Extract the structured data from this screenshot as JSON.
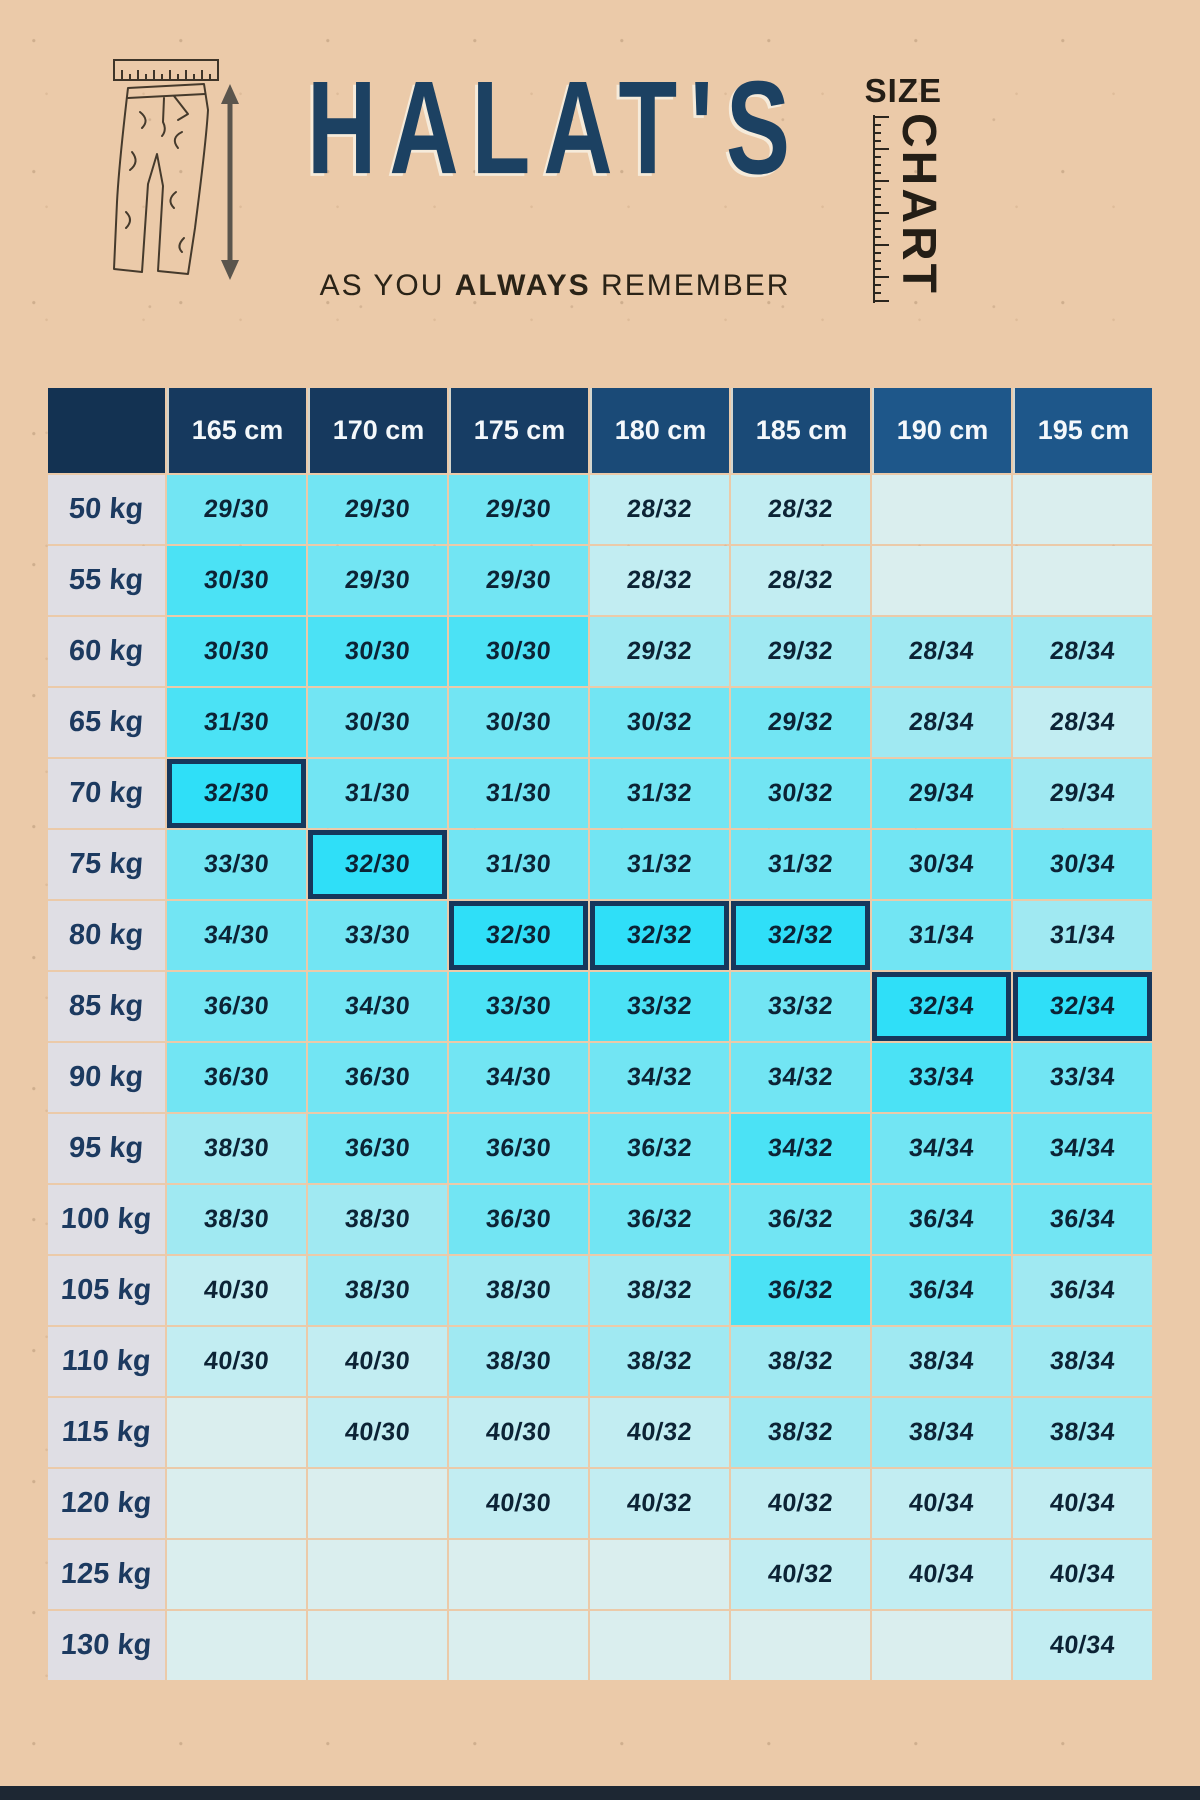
{
  "brand": {
    "title": "HALAT'S",
    "tagline_prefix": "AS YOU ",
    "tagline_bold": "ALWAYS",
    "tagline_suffix": " REMEMBER",
    "size_label": "SIZE",
    "chart_label": "CHART"
  },
  "chart_data": {
    "type": "table",
    "title": "HALAT'S size chart — pants size (waist/length) by height and weight",
    "columns": [
      "165 cm",
      "170 cm",
      "175 cm",
      "180 cm",
      "185 cm",
      "190 cm",
      "195 cm"
    ],
    "row_header_unit": "kg",
    "rows": [
      {
        "weight": "50 kg",
        "values": [
          "29/30",
          "29/30",
          "29/30",
          "28/32",
          "28/32",
          "",
          ""
        ],
        "shades": [
          "3",
          "3",
          "3",
          "1",
          "1",
          "0",
          "0"
        ]
      },
      {
        "weight": "55 kg",
        "values": [
          "30/30",
          "29/30",
          "29/30",
          "28/32",
          "28/32",
          "",
          ""
        ],
        "shades": [
          "4",
          "3",
          "3",
          "1",
          "1",
          "0",
          "0"
        ]
      },
      {
        "weight": "60 kg",
        "values": [
          "30/30",
          "30/30",
          "30/30",
          "29/32",
          "29/32",
          "28/34",
          "28/34"
        ],
        "shades": [
          "4",
          "4",
          "4",
          "2",
          "2",
          "2",
          "2"
        ]
      },
      {
        "weight": "65 kg",
        "values": [
          "31/30",
          "30/30",
          "30/30",
          "30/32",
          "29/32",
          "28/34",
          "28/34"
        ],
        "shades": [
          "4",
          "3",
          "3",
          "3",
          "3",
          "2",
          "1"
        ]
      },
      {
        "weight": "70 kg",
        "values": [
          "32/30",
          "31/30",
          "31/30",
          "31/32",
          "30/32",
          "29/34",
          "29/34"
        ],
        "shades": [
          "h",
          "3",
          "3",
          "3",
          "3",
          "3",
          "2"
        ]
      },
      {
        "weight": "75 kg",
        "values": [
          "33/30",
          "32/30",
          "31/30",
          "31/32",
          "31/32",
          "30/34",
          "30/34"
        ],
        "shades": [
          "3",
          "h",
          "3",
          "3",
          "3",
          "3",
          "3"
        ]
      },
      {
        "weight": "80 kg",
        "values": [
          "34/30",
          "33/30",
          "32/30",
          "32/32",
          "32/32",
          "31/34",
          "31/34"
        ],
        "shades": [
          "3",
          "3",
          "h",
          "h",
          "h",
          "3",
          "2"
        ]
      },
      {
        "weight": "85 kg",
        "values": [
          "36/30",
          "34/30",
          "33/30",
          "33/32",
          "33/32",
          "32/34",
          "32/34"
        ],
        "shades": [
          "3",
          "3",
          "4",
          "4",
          "3",
          "h",
          "h"
        ]
      },
      {
        "weight": "90 kg",
        "values": [
          "36/30",
          "36/30",
          "34/30",
          "34/32",
          "34/32",
          "33/34",
          "33/34"
        ],
        "shades": [
          "3",
          "3",
          "3",
          "3",
          "3",
          "4",
          "3"
        ]
      },
      {
        "weight": "95 kg",
        "values": [
          "38/30",
          "36/30",
          "36/30",
          "36/32",
          "34/32",
          "34/34",
          "34/34"
        ],
        "shades": [
          "2",
          "3",
          "3",
          "3",
          "4",
          "3",
          "3"
        ]
      },
      {
        "weight": "100 kg",
        "values": [
          "38/30",
          "38/30",
          "36/30",
          "36/32",
          "36/32",
          "36/34",
          "36/34"
        ],
        "shades": [
          "2",
          "2",
          "3",
          "3",
          "3",
          "3",
          "3"
        ]
      },
      {
        "weight": "105 kg",
        "values": [
          "40/30",
          "38/30",
          "38/30",
          "38/32",
          "36/32",
          "36/34",
          "36/34"
        ],
        "shades": [
          "1",
          "2",
          "2",
          "2",
          "4",
          "3",
          "2"
        ]
      },
      {
        "weight": "110 kg",
        "values": [
          "40/30",
          "40/30",
          "38/30",
          "38/32",
          "38/32",
          "38/34",
          "38/34"
        ],
        "shades": [
          "1",
          "1",
          "2",
          "2",
          "2",
          "2",
          "2"
        ]
      },
      {
        "weight": "115 kg",
        "values": [
          "",
          "40/30",
          "40/30",
          "40/32",
          "38/32",
          "38/34",
          "38/34"
        ],
        "shades": [
          "0",
          "1",
          "1",
          "1",
          "2",
          "2",
          "2"
        ]
      },
      {
        "weight": "120 kg",
        "values": [
          "",
          "",
          "40/30",
          "40/32",
          "40/32",
          "40/34",
          "40/34"
        ],
        "shades": [
          "0",
          "0",
          "1",
          "1",
          "1",
          "1",
          "1"
        ]
      },
      {
        "weight": "125 kg",
        "values": [
          "",
          "",
          "",
          "",
          "40/32",
          "40/34",
          "40/34"
        ],
        "shades": [
          "0",
          "0",
          "0",
          "0",
          "1",
          "1",
          "1"
        ]
      },
      {
        "weight": "130 kg",
        "values": [
          "",
          "",
          "",
          "",
          "",
          "",
          "40/34"
        ],
        "shades": [
          "0",
          "0",
          "0",
          "0",
          "0",
          "0",
          "1"
        ]
      }
    ],
    "highlighted_cells_note": "diagonal of best-fit sizes outlined in navy",
    "legend_position": "none",
    "grid": true
  },
  "colors": {
    "background": "#ebcaa9",
    "brand_navy": "#1c4162",
    "ink": "#241e16",
    "header_corner": "#133252",
    "header_colors": [
      "#16395e",
      "#16395e",
      "#173d64",
      "#1a4a77",
      "#1a4a77",
      "#1e578a",
      "#1e578a"
    ],
    "weight_cell_bg": "#dfdee4",
    "weight_text": "#1c3a60",
    "cell_text": "#0c2335",
    "highlight_border": "#16375c",
    "shade_map": {
      "0": "#daeeee",
      "1": "#c2edf2",
      "2": "#a0e9f2",
      "3": "#72e5f3",
      "4": "#4be2f5",
      "h": "#2fdff8"
    },
    "bottom_bar": "#1d2733"
  }
}
